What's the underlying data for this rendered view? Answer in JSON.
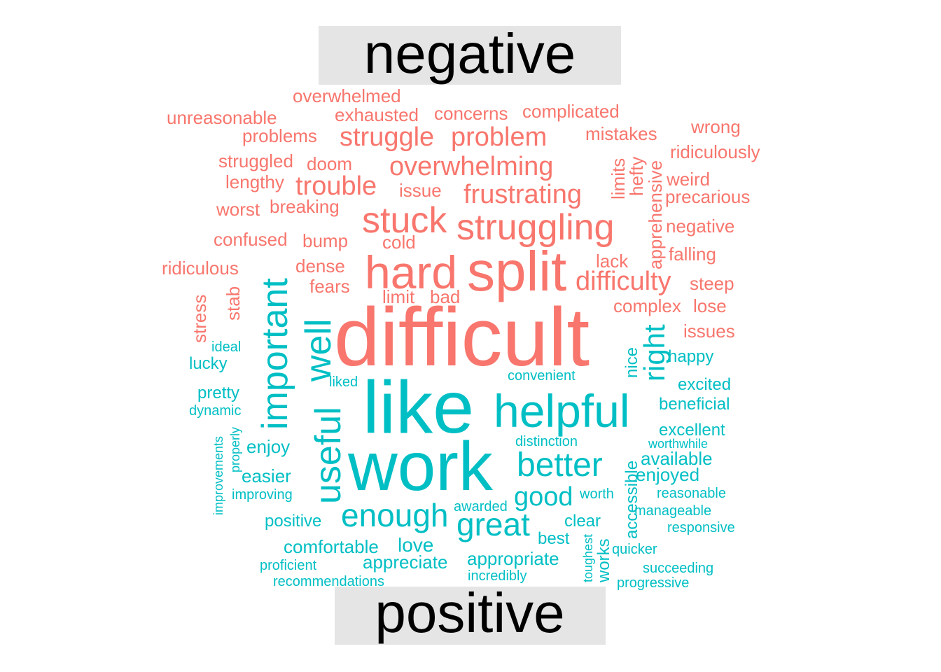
{
  "chart_data": {
    "type": "wordcloud",
    "groups": [
      {
        "name": "negative",
        "color": "#F8766D"
      },
      {
        "name": "positive",
        "color": "#00BFC4"
      }
    ],
    "words": [
      {
        "w": "difficult",
        "g": "negative",
        "s": 100
      },
      {
        "w": "split",
        "g": "negative",
        "s": 62
      },
      {
        "w": "hard",
        "g": "negative",
        "s": 55
      },
      {
        "w": "stuck",
        "g": "negative",
        "s": 44
      },
      {
        "w": "struggling",
        "g": "negative",
        "s": 45
      },
      {
        "w": "difficulty",
        "g": "negative",
        "s": 34
      },
      {
        "w": "struggle",
        "g": "negative",
        "s": 34
      },
      {
        "w": "problem",
        "g": "negative",
        "s": 34
      },
      {
        "w": "overwhelming",
        "g": "negative",
        "s": 34
      },
      {
        "w": "trouble",
        "g": "negative",
        "s": 33
      },
      {
        "w": "frustrating",
        "g": "negative",
        "s": 33
      },
      {
        "w": "overwhelmed",
        "g": "negative",
        "s": 24
      },
      {
        "w": "unreasonable",
        "g": "negative",
        "s": 24
      },
      {
        "w": "exhausted",
        "g": "negative",
        "s": 24
      },
      {
        "w": "concerns",
        "g": "negative",
        "s": 24
      },
      {
        "w": "complicated",
        "g": "negative",
        "s": 24
      },
      {
        "w": "problems",
        "g": "negative",
        "s": 24
      },
      {
        "w": "mistakes",
        "g": "negative",
        "s": 24
      },
      {
        "w": "wrong",
        "g": "negative",
        "s": 24
      },
      {
        "w": "ridiculously",
        "g": "negative",
        "s": 24
      },
      {
        "w": "struggled",
        "g": "negative",
        "s": 24
      },
      {
        "w": "doom",
        "g": "negative",
        "s": 24
      },
      {
        "w": "lengthy",
        "g": "negative",
        "s": 24
      },
      {
        "w": "issue",
        "g": "negative",
        "s": 24
      },
      {
        "w": "limits",
        "g": "negative",
        "s": 24
      },
      {
        "w": "hefty",
        "g": "negative",
        "s": 24
      },
      {
        "w": "apprehensive",
        "g": "negative",
        "s": 24
      },
      {
        "w": "weird",
        "g": "negative",
        "s": 24
      },
      {
        "w": "precarious",
        "g": "negative",
        "s": 24
      },
      {
        "w": "worst",
        "g": "negative",
        "s": 24
      },
      {
        "w": "breaking",
        "g": "negative",
        "s": 24
      },
      {
        "w": "negative",
        "g": "negative",
        "s": 24
      },
      {
        "w": "confused",
        "g": "negative",
        "s": 24
      },
      {
        "w": "bump",
        "g": "negative",
        "s": 24
      },
      {
        "w": "cold",
        "g": "negative",
        "s": 24
      },
      {
        "w": "falling",
        "g": "negative",
        "s": 24
      },
      {
        "w": "ridiculous",
        "g": "negative",
        "s": 24
      },
      {
        "w": "dense",
        "g": "negative",
        "s": 24
      },
      {
        "w": "lack",
        "g": "negative",
        "s": 24
      },
      {
        "w": "fears",
        "g": "negative",
        "s": 24
      },
      {
        "w": "steep",
        "g": "negative",
        "s": 24
      },
      {
        "w": "limit",
        "g": "negative",
        "s": 24
      },
      {
        "w": "bad",
        "g": "negative",
        "s": 24
      },
      {
        "w": "complex",
        "g": "negative",
        "s": 24
      },
      {
        "w": "lose",
        "g": "negative",
        "s": 24
      },
      {
        "w": "stab",
        "g": "negative",
        "s": 24
      },
      {
        "w": "stress",
        "g": "negative",
        "s": 24
      },
      {
        "w": "issues",
        "g": "negative",
        "s": 24
      },
      {
        "w": "like",
        "g": "positive",
        "s": 90
      },
      {
        "w": "work",
        "g": "positive",
        "s": 80
      },
      {
        "w": "helpful",
        "g": "positive",
        "s": 60
      },
      {
        "w": "important",
        "g": "positive",
        "s": 46
      },
      {
        "w": "well",
        "g": "positive",
        "s": 46
      },
      {
        "w": "useful",
        "g": "positive",
        "s": 46
      },
      {
        "w": "right",
        "g": "positive",
        "s": 40
      },
      {
        "w": "better",
        "g": "positive",
        "s": 40
      },
      {
        "w": "enough",
        "g": "positive",
        "s": 40
      },
      {
        "w": "great",
        "g": "positive",
        "s": 40
      },
      {
        "w": "good",
        "g": "positive",
        "s": 34
      },
      {
        "w": "nice",
        "g": "positive",
        "s": 22
      },
      {
        "w": "happy",
        "g": "positive",
        "s": 22
      },
      {
        "w": "ideal",
        "g": "positive",
        "s": 18
      },
      {
        "w": "lucky",
        "g": "positive",
        "s": 22
      },
      {
        "w": "liked",
        "g": "positive",
        "s": 18
      },
      {
        "w": "convenient",
        "g": "positive",
        "s": 18
      },
      {
        "w": "excited",
        "g": "positive",
        "s": 22
      },
      {
        "w": "pretty",
        "g": "positive",
        "s": 22
      },
      {
        "w": "dynamic",
        "g": "positive",
        "s": 18
      },
      {
        "w": "beneficial",
        "g": "positive",
        "s": 22
      },
      {
        "w": "excellent",
        "g": "positive",
        "s": 22
      },
      {
        "w": "properly",
        "g": "positive",
        "s": 18
      },
      {
        "w": "improvements",
        "g": "positive",
        "s": 18
      },
      {
        "w": "enjoy",
        "g": "positive",
        "s": 22
      },
      {
        "w": "distinction",
        "g": "positive",
        "s": 18
      },
      {
        "w": "worthwhile",
        "g": "positive",
        "s": 18
      },
      {
        "w": "available",
        "g": "positive",
        "s": 22
      },
      {
        "w": "easier",
        "g": "positive",
        "s": 22
      },
      {
        "w": "accessible",
        "g": "positive",
        "s": 22
      },
      {
        "w": "enjoyed",
        "g": "positive",
        "s": 22
      },
      {
        "w": "improving",
        "g": "positive",
        "s": 18
      },
      {
        "w": "worth",
        "g": "positive",
        "s": 18
      },
      {
        "w": "reasonable",
        "g": "positive",
        "s": 18
      },
      {
        "w": "awarded",
        "g": "positive",
        "s": 18
      },
      {
        "w": "manageable",
        "g": "positive",
        "s": 18
      },
      {
        "w": "positive",
        "g": "positive",
        "s": 22
      },
      {
        "w": "clear",
        "g": "positive",
        "s": 22
      },
      {
        "w": "responsive",
        "g": "positive",
        "s": 18
      },
      {
        "w": "best",
        "g": "positive",
        "s": 22
      },
      {
        "w": "love",
        "g": "positive",
        "s": 22
      },
      {
        "w": "toughest",
        "g": "positive",
        "s": 18
      },
      {
        "w": "works",
        "g": "positive",
        "s": 22
      },
      {
        "w": "quicker",
        "g": "positive",
        "s": 18
      },
      {
        "w": "comfortable",
        "g": "positive",
        "s": 22
      },
      {
        "w": "appreciate",
        "g": "positive",
        "s": 22
      },
      {
        "w": "appropriate",
        "g": "positive",
        "s": 22
      },
      {
        "w": "proficient",
        "g": "positive",
        "s": 18
      },
      {
        "w": "succeeding",
        "g": "positive",
        "s": 18
      },
      {
        "w": "recommendations",
        "g": "positive",
        "s": 18
      },
      {
        "w": "incredibly",
        "g": "positive",
        "s": 18
      },
      {
        "w": "progressive",
        "g": "positive",
        "s": 18
      }
    ]
  }
}
